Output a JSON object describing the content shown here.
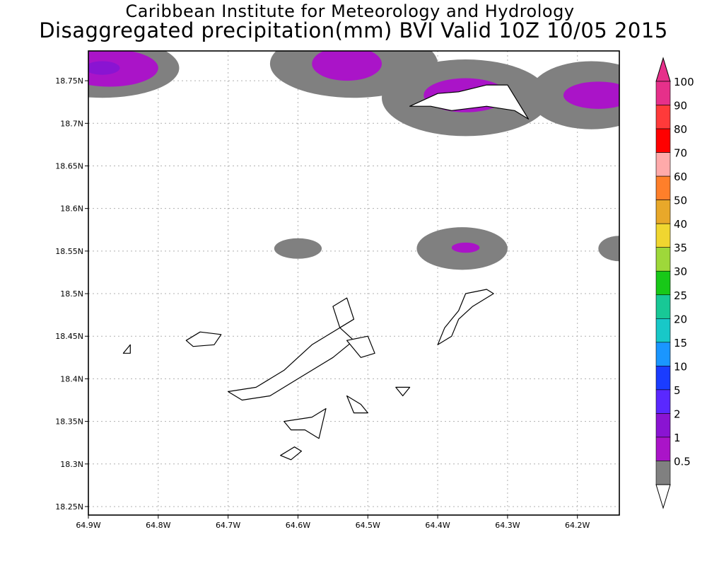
{
  "title": {
    "line1": "Caribbean Institute for Meteorology and Hydrology",
    "line2": "Disaggregated precipitation(mm) BVI Valid 10Z 10/05 2015"
  },
  "map": {
    "lon_range": [
      -64.9,
      -64.14
    ],
    "lat_range": [
      18.24,
      18.785
    ],
    "lon_ticks": [
      {
        "v": -64.9,
        "label": "64.9W"
      },
      {
        "v": -64.8,
        "label": "64.8W"
      },
      {
        "v": -64.7,
        "label": "64.7W"
      },
      {
        "v": -64.6,
        "label": "64.6W"
      },
      {
        "v": -64.5,
        "label": "64.5W"
      },
      {
        "v": -64.4,
        "label": "64.4W"
      },
      {
        "v": -64.3,
        "label": "64.3W"
      },
      {
        "v": -64.2,
        "label": "64.2W"
      }
    ],
    "lat_ticks": [
      {
        "v": 18.25,
        "label": "18.25N"
      },
      {
        "v": 18.3,
        "label": "18.3N"
      },
      {
        "v": 18.35,
        "label": "18.35N"
      },
      {
        "v": 18.4,
        "label": "18.4N"
      },
      {
        "v": 18.45,
        "label": "18.45N"
      },
      {
        "v": 18.5,
        "label": "18.5N"
      },
      {
        "v": 18.55,
        "label": "18.55N"
      },
      {
        "v": 18.6,
        "label": "18.6N"
      },
      {
        "v": 18.65,
        "label": "18.65N"
      },
      {
        "v": 18.7,
        "label": "18.7N"
      },
      {
        "v": 18.75,
        "label": "18.75N"
      }
    ],
    "precip_cells": [
      {
        "lon": -64.88,
        "lat": 18.765,
        "r_lon": 0.11,
        "r_lat": 0.035,
        "level": "0.5-1"
      },
      {
        "lon": -64.87,
        "lat": 18.765,
        "r_lon": 0.07,
        "r_lat": 0.022,
        "level": "1-2"
      },
      {
        "lon": -64.88,
        "lat": 18.765,
        "r_lon": 0.025,
        "r_lat": 0.008,
        "level": "2-5"
      },
      {
        "lon": -64.52,
        "lat": 18.77,
        "r_lon": 0.12,
        "r_lat": 0.04,
        "level": "0.5-1"
      },
      {
        "lon": -64.53,
        "lat": 18.77,
        "r_lon": 0.05,
        "r_lat": 0.02,
        "level": "1-2"
      },
      {
        "lon": -64.36,
        "lat": 18.73,
        "r_lon": 0.12,
        "r_lat": 0.045,
        "level": "0.5-1"
      },
      {
        "lon": -64.36,
        "lat": 18.733,
        "r_lon": 0.06,
        "r_lat": 0.02,
        "level": "1-2"
      },
      {
        "lon": -64.18,
        "lat": 18.733,
        "r_lon": 0.09,
        "r_lat": 0.04,
        "level": "0.5-1"
      },
      {
        "lon": -64.17,
        "lat": 18.733,
        "r_lon": 0.05,
        "r_lat": 0.016,
        "level": "1-2"
      },
      {
        "lon": -64.6,
        "lat": 18.553,
        "r_lon": 0.034,
        "r_lat": 0.012,
        "level": "0.5-1"
      },
      {
        "lon": -64.365,
        "lat": 18.553,
        "r_lon": 0.065,
        "r_lat": 0.025,
        "level": "0.5-1"
      },
      {
        "lon": -64.36,
        "lat": 18.554,
        "r_lon": 0.02,
        "r_lat": 0.006,
        "level": "1-2"
      },
      {
        "lon": -64.14,
        "lat": 18.553,
        "r_lon": 0.03,
        "r_lat": 0.015,
        "level": "0.5-1"
      }
    ],
    "islands": [
      {
        "name": "",
        "points": [
          [
            -64.7,
            18.385
          ],
          [
            -64.66,
            18.39
          ],
          [
            -64.62,
            18.41
          ],
          [
            -64.58,
            18.44
          ],
          [
            -64.54,
            18.46
          ],
          [
            -64.52,
            18.445
          ],
          [
            -64.55,
            18.425
          ],
          [
            -64.6,
            18.4
          ],
          [
            -64.64,
            18.38
          ],
          [
            -64.68,
            18.375
          ]
        ]
      },
      {
        "name": "",
        "points": [
          [
            -64.76,
            18.445
          ],
          [
            -64.74,
            18.455
          ],
          [
            -64.71,
            18.452
          ],
          [
            -64.72,
            18.44
          ],
          [
            -64.75,
            18.438
          ]
        ]
      },
      {
        "name": "",
        "points": [
          [
            -64.53,
            18.445
          ],
          [
            -64.5,
            18.45
          ],
          [
            -64.49,
            18.43
          ],
          [
            -64.51,
            18.425
          ],
          [
            -64.52,
            18.435
          ]
        ]
      },
      {
        "name": "",
        "points": [
          [
            -64.62,
            18.35
          ],
          [
            -64.58,
            18.355
          ],
          [
            -64.56,
            18.365
          ],
          [
            -64.57,
            18.33
          ],
          [
            -64.59,
            18.34
          ],
          [
            -64.61,
            18.34
          ]
        ]
      },
      {
        "name": "",
        "points": [
          [
            -64.625,
            18.31
          ],
          [
            -64.605,
            18.32
          ],
          [
            -64.595,
            18.315
          ],
          [
            -64.61,
            18.305
          ]
        ]
      },
      {
        "name": "",
        "points": [
          [
            -64.4,
            18.44
          ],
          [
            -64.39,
            18.46
          ],
          [
            -64.37,
            18.48
          ],
          [
            -64.36,
            18.5
          ],
          [
            -64.33,
            18.505
          ],
          [
            -64.32,
            18.5
          ],
          [
            -64.35,
            18.485
          ],
          [
            -64.37,
            18.47
          ],
          [
            -64.38,
            18.45
          ]
        ]
      },
      {
        "name": "",
        "points": [
          [
            -64.46,
            18.39
          ],
          [
            -64.45,
            18.38
          ],
          [
            -64.44,
            18.39
          ]
        ]
      },
      {
        "name": "",
        "points": [
          [
            -64.53,
            18.38
          ],
          [
            -64.51,
            18.37
          ],
          [
            -64.5,
            18.36
          ],
          [
            -64.52,
            18.36
          ]
        ]
      },
      {
        "name": "",
        "points": [
          [
            -64.55,
            18.485
          ],
          [
            -64.53,
            18.495
          ],
          [
            -64.52,
            18.47
          ],
          [
            -64.54,
            18.46
          ]
        ]
      },
      {
        "name": "",
        "points": [
          [
            -64.85,
            18.43
          ],
          [
            -64.84,
            18.44
          ],
          [
            -64.84,
            18.43
          ]
        ]
      },
      {
        "name": "",
        "points": [
          [
            -64.44,
            18.72
          ],
          [
            -64.4,
            18.735
          ],
          [
            -64.37,
            18.737
          ],
          [
            -64.33,
            18.745
          ],
          [
            -64.3,
            18.745
          ],
          [
            -64.27,
            18.705
          ],
          [
            -64.29,
            18.715
          ],
          [
            -64.33,
            18.72
          ],
          [
            -64.38,
            18.715
          ],
          [
            -64.41,
            18.72
          ]
        ]
      }
    ]
  },
  "colorbar": {
    "entries": [
      {
        "label": "100",
        "color": "#e6308a"
      },
      {
        "label": "90",
        "color": "#ff3a3a"
      },
      {
        "label": "80",
        "color": "#ff0000"
      },
      {
        "label": "70",
        "color": "#ffaaaa"
      },
      {
        "label": "60",
        "color": "#ff7f2a"
      },
      {
        "label": "50",
        "color": "#e8a82a"
      },
      {
        "label": "40",
        "color": "#f0d630"
      },
      {
        "label": "35",
        "color": "#9ed83a"
      },
      {
        "label": "30",
        "color": "#18c818"
      },
      {
        "label": "25",
        "color": "#18c896"
      },
      {
        "label": "20",
        "color": "#18c8c8"
      },
      {
        "label": "15",
        "color": "#1a96ff"
      },
      {
        "label": "10",
        "color": "#1a3cff"
      },
      {
        "label": "5",
        "color": "#5a28ff"
      },
      {
        "label": "2",
        "color": "#8a14d2"
      },
      {
        "label": "1",
        "color": "#aa14c8"
      },
      {
        "label": "0.5",
        "color": "#808080"
      }
    ],
    "top_arrow_color": "#e6308a",
    "bottom_arrow_color": "#ffffff"
  }
}
